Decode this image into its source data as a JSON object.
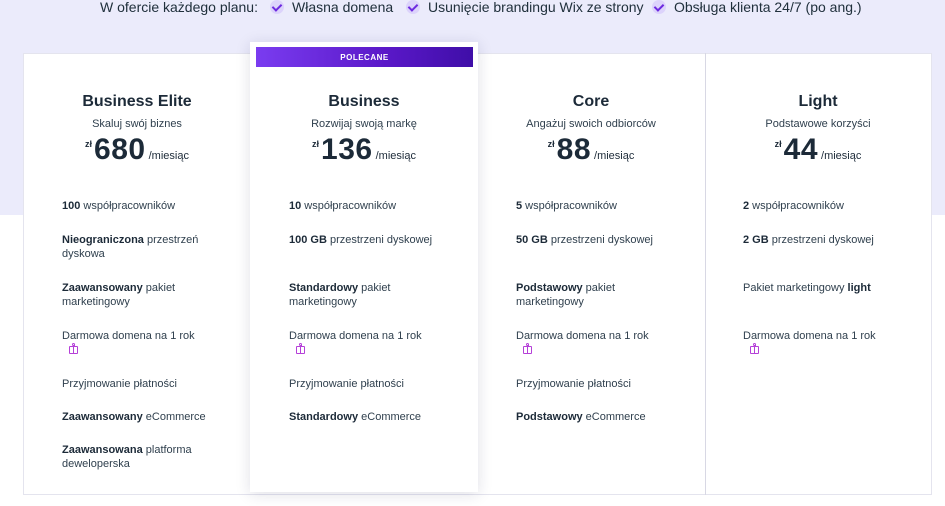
{
  "header": {
    "lead": "W ofercie każdego planu:",
    "features": [
      "Własna domena",
      "Usunięcie brandingu Wix ze strony",
      "Obsługa klienta 24/7 (po ang.)"
    ]
  },
  "badge": "POLECANE",
  "currency": "zł",
  "period": "/miesiąc",
  "gift_icon": "gift-icon",
  "plans": [
    {
      "name": "Business Elite",
      "tagline": "Skaluj swój biznes",
      "price": "680",
      "f1b": "100",
      "f1": " współpracowników",
      "f2b": "Nieograniczona",
      "f2": " przestrzeń dyskowa",
      "f3b": "Zaawansowany",
      "f3": " pakiet marketingowy",
      "f4": "Darmowa domena na 1 rok",
      "f5": "Przyjmowanie płatności",
      "f6b": "Zaawansowany",
      "f6": " eCommerce",
      "f7b": "Zaawansowana",
      "f7": " platforma deweloperska"
    },
    {
      "name": "Business",
      "tagline": "Rozwijaj swoją markę",
      "price": "136",
      "f1b": "10",
      "f1": " współpracowników",
      "f2b": "100 GB",
      "f2": " przestrzeni dyskowej",
      "f3b": "Standardowy",
      "f3": " pakiet marketingowy",
      "f4": "Darmowa domena na 1 rok",
      "f5": "Przyjmowanie płatności",
      "f6b": "Standardowy",
      "f6": " eCommerce"
    },
    {
      "name": "Core",
      "tagline": "Angażuj swoich odbiorców",
      "price": "88",
      "f1b": "5",
      "f1": " współpracowników",
      "f2b": "50 GB",
      "f2": " przestrzeni dyskowej",
      "f3b": "Podstawowy",
      "f3": " pakiet marketingowy",
      "f4": "Darmowa domena na 1 rok",
      "f5": "Przyjmowanie płatności",
      "f6b": "Podstawowy",
      "f6": " eCommerce"
    },
    {
      "name": "Light",
      "tagline": "Podstawowe korzyści",
      "price": "44",
      "f1b": "2",
      "f1": " współpracowników",
      "f2b": "2 GB",
      "f2": " przestrzeni dyskowej",
      "f3": "Pakiet marketingowy ",
      "f3b": "light",
      "f4": "Darmowa domena na 1 rok"
    }
  ]
}
